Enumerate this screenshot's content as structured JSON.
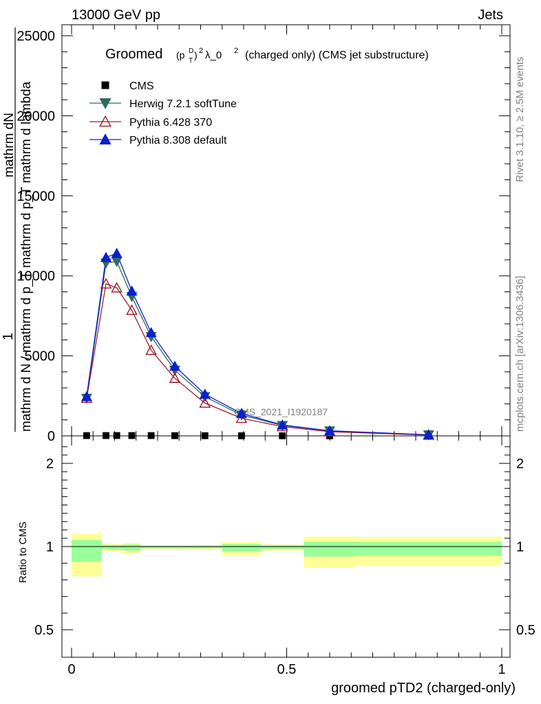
{
  "header": {
    "left": "13000 GeV pp",
    "right": "Jets"
  },
  "side_labels": {
    "rivet": "Rivet 3.1.10, ≥ 2.5M events",
    "mcplots": "mcplots.cern.ch [arXiv:1306.3436]"
  },
  "watermark": "CMS_2021_I1920187",
  "colors": {
    "cms": "#000000",
    "herwig": "#2f6b5e",
    "pythia6": "#a01c2c",
    "pythia8": "#0a1fd0",
    "band_inner": "#99ff99",
    "band_outer": "#ffff99"
  },
  "chart_data": [
    {
      "type": "line",
      "panel": "main",
      "title_prefix": "Groomed",
      "title_math_base": "(p",
      "title_math_sup": "D",
      "title_math_sub": "T",
      "title_math_close": ")",
      "title_math_pow": "2",
      "title_lambda": "λ_0",
      "title_lambda_sup": "2",
      "title_suffix": "(charged only) (CMS jet substructure)",
      "ylabel_prefix": "1",
      "ylabel_lines": [
        "mathrm dN",
        "mathrm d N / mathrm d p_T mathrm d p_T mathrm d lambda"
      ],
      "ylabel_numerator": "mathrm d",
      "ylabel_numerator_sup": "2",
      "ylabel_numerator_rest": "N",
      "ylabel_denominator": "mathrm d N / mathrm d p",
      "ylabel_denominator_sub": "T",
      "ylabel_denominator_rest": " mathrm d p",
      "ylabel_denominator_sub2": "T",
      "ylabel_denominator_end": " mathrm d lambda",
      "xlim": [
        0,
        1
      ],
      "ylim": [
        0,
        25000
      ],
      "yticks": [
        0,
        5000,
        10000,
        15000,
        20000,
        25000
      ],
      "ytick_labels": [
        "0",
        "5000",
        "10000",
        "15000",
        "20000",
        "25000"
      ],
      "legend_position": "top-left",
      "series": [
        {
          "name": "CMS",
          "marker": "square",
          "color_key": "cms",
          "x": [
            0.035,
            0.08,
            0.105,
            0.14,
            0.185,
            0.24,
            0.31,
            0.395,
            0.49,
            0.6,
            0.83
          ],
          "y": [
            18,
            20,
            21,
            20,
            17,
            14,
            11,
            8,
            5,
            3,
            1
          ]
        },
        {
          "name": "Herwig 7.2.1 softTune",
          "marker": "triangle-down",
          "color_key": "herwig",
          "x": [
            0.035,
            0.08,
            0.105,
            0.14,
            0.185,
            0.24,
            0.31,
            0.395,
            0.49,
            0.6,
            0.83
          ],
          "y": [
            2350,
            10800,
            10900,
            8700,
            6200,
            4100,
            2450,
            1300,
            650,
            310,
            60
          ]
        },
        {
          "name": "Pythia 6.428 370",
          "marker": "triangle-up-open",
          "color_key": "pythia6",
          "x": [
            0.035,
            0.08,
            0.105,
            0.14,
            0.185,
            0.24,
            0.31,
            0.395,
            0.49,
            0.6,
            0.83
          ],
          "y": [
            2350,
            9500,
            9250,
            7850,
            5350,
            3600,
            2050,
            1100,
            580,
            260,
            50
          ]
        },
        {
          "name": "Pythia 8.308 default",
          "marker": "triangle-up",
          "color_key": "pythia8",
          "x": [
            0.035,
            0.08,
            0.105,
            0.14,
            0.185,
            0.24,
            0.31,
            0.395,
            0.49,
            0.6,
            0.83
          ],
          "y": [
            2450,
            11150,
            11400,
            9050,
            6450,
            4350,
            2600,
            1400,
            680,
            320,
            70
          ]
        }
      ]
    },
    {
      "type": "area",
      "panel": "ratio",
      "ylabel": "Ratio to CMS",
      "xlabel": "groomed pTD2 (charged-only)",
      "xlim": [
        0,
        1
      ],
      "ylim": [
        0.4,
        2.3
      ],
      "yticks": [
        0.5,
        1,
        2
      ],
      "ytick_labels": [
        "0.5",
        "1",
        "2"
      ],
      "xticks": [
        0,
        0.5,
        1
      ],
      "xtick_labels": [
        "0",
        "0.5",
        "1"
      ],
      "bins": [
        {
          "x": [
            0.0,
            0.07
          ],
          "inner": [
            0.91,
            1.08
          ],
          "outer": [
            0.82,
            1.16
          ]
        },
        {
          "x": [
            0.07,
            0.09
          ],
          "inner": [
            0.985,
            1.02
          ],
          "outer": [
            0.97,
            1.035
          ]
        },
        {
          "x": [
            0.09,
            0.12
          ],
          "inner": [
            0.98,
            1.02
          ],
          "outer": [
            0.97,
            1.03
          ]
        },
        {
          "x": [
            0.12,
            0.16
          ],
          "inner": [
            0.975,
            1.025
          ],
          "outer": [
            0.955,
            1.045
          ]
        },
        {
          "x": [
            0.16,
            0.21
          ],
          "inner": [
            0.99,
            1.01
          ],
          "outer": [
            0.985,
            1.015
          ]
        },
        {
          "x": [
            0.21,
            0.27
          ],
          "inner": [
            0.99,
            1.01
          ],
          "outer": [
            0.985,
            1.015
          ]
        },
        {
          "x": [
            0.27,
            0.35
          ],
          "inner": [
            0.99,
            1.01
          ],
          "outer": [
            0.98,
            1.02
          ]
        },
        {
          "x": [
            0.35,
            0.44
          ],
          "inner": [
            0.97,
            1.03
          ],
          "outer": [
            0.945,
            1.055
          ]
        },
        {
          "x": [
            0.44,
            0.54
          ],
          "inner": [
            0.985,
            1.015
          ],
          "outer": [
            0.975,
            1.025
          ]
        },
        {
          "x": [
            0.54,
            0.66
          ],
          "inner": [
            0.94,
            1.06
          ],
          "outer": [
            0.875,
            1.12
          ]
        },
        {
          "x": [
            0.66,
            1.0
          ],
          "inner": [
            0.945,
            1.055
          ],
          "outer": [
            0.885,
            1.115
          ]
        }
      ]
    }
  ]
}
